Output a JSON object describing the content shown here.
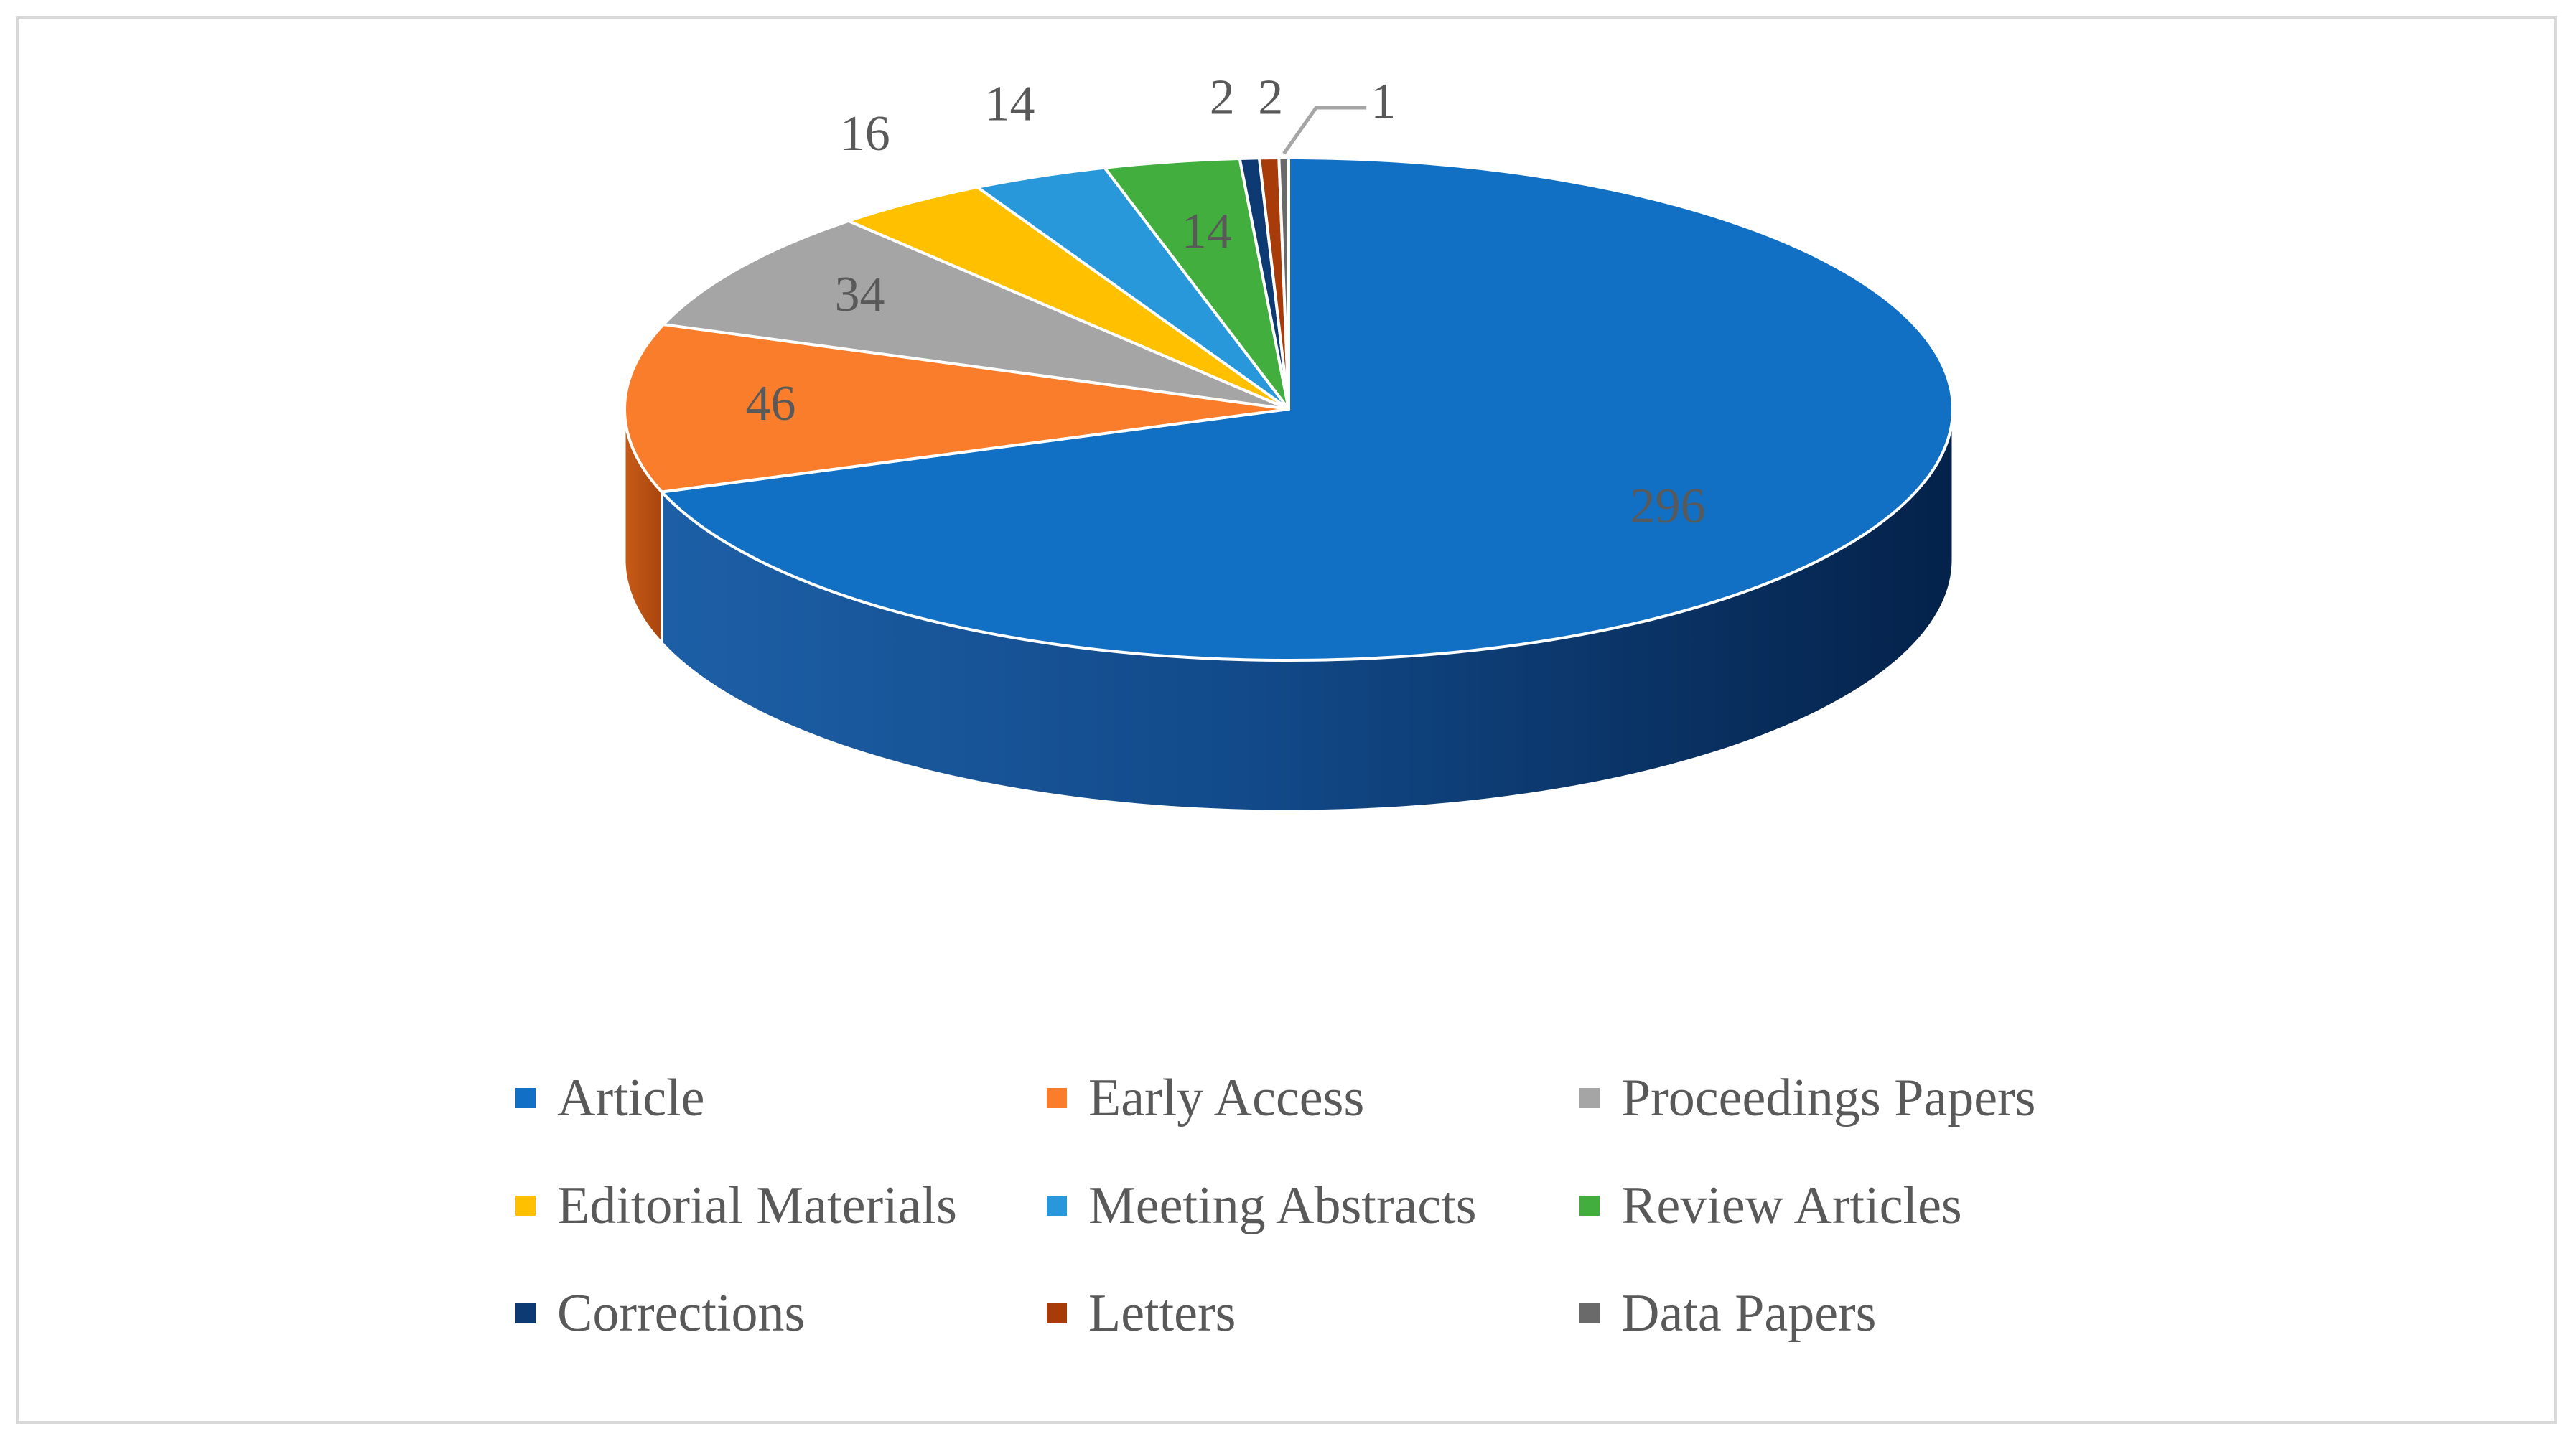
{
  "chart_data": {
    "type": "pie",
    "title": "",
    "legend_position": "bottom",
    "categories": [
      "Article",
      "Early Access",
      "Proceedings Papers",
      "Editorial Materials",
      "Meeting Abstracts",
      "Review Articles",
      "Corrections",
      "Letters",
      "Data Papers"
    ],
    "values": [
      296,
      46,
      34,
      16,
      14,
      14,
      2,
      2,
      1
    ],
    "colors": [
      "#1170C4",
      "#F97D2B",
      "#A5A5A5",
      "#FFC000",
      "#2898DA",
      "#42AE3E",
      "#0D3A72",
      "#A73B0A",
      "#6A6A6A"
    ],
    "labels": [
      "296",
      "46",
      "34",
      "16",
      "14",
      "14",
      "2",
      "2",
      "1"
    ],
    "style": "3d"
  }
}
